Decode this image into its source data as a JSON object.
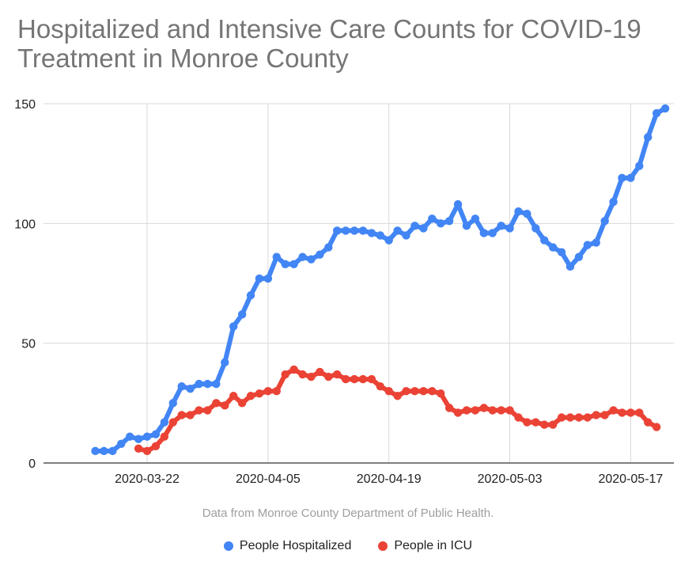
{
  "chart_data": {
    "type": "line",
    "title": "Hospitalized and Intensive Care Counts for COVID-19 Treatment in Monroe County",
    "subtitle": "Data from Monroe County Department of Public Health.",
    "xlabel": "",
    "ylabel": "",
    "x_start": "2020-03-16",
    "x_ticks": [
      "2020-03-22",
      "2020-04-05",
      "2020-04-19",
      "2020-05-03",
      "2020-05-17"
    ],
    "y_ticks": [
      0,
      50,
      100,
      150
    ],
    "ylim": [
      0,
      150
    ],
    "xlim": [
      "2020-03-10",
      "2020-05-22"
    ],
    "grid": true,
    "legend": "bottom",
    "series": [
      {
        "name": "People Hospitalized",
        "color": "#4285f4",
        "values": [
          5,
          5,
          5,
          8,
          11,
          10,
          11,
          12,
          17,
          25,
          32,
          31,
          33,
          33,
          33,
          42,
          57,
          62,
          70,
          77,
          77,
          86,
          83,
          83,
          86,
          85,
          87,
          90,
          97,
          97,
          97,
          97,
          96,
          95,
          93,
          97,
          95,
          99,
          98,
          102,
          100,
          101,
          108,
          99,
          102,
          96,
          96,
          99,
          98,
          105,
          104,
          98,
          93,
          90,
          88,
          82,
          86,
          91,
          92,
          101,
          109,
          119,
          119,
          124,
          136,
          146,
          148
        ]
      },
      {
        "name": "People in ICU",
        "color": "#ea4335",
        "start": "2020-03-21",
        "values": [
          6,
          5,
          7,
          11,
          17,
          20,
          20,
          22,
          22,
          25,
          24,
          28,
          25,
          28,
          29,
          30,
          30,
          37,
          39,
          37,
          36,
          38,
          36,
          37,
          35,
          35,
          35,
          35,
          32,
          30,
          28,
          30,
          30,
          30,
          30,
          29,
          23,
          21,
          22,
          22,
          23,
          22,
          22,
          22,
          19,
          17,
          17,
          16,
          16,
          19,
          19,
          19,
          19,
          20,
          20,
          22,
          21,
          21,
          21,
          17,
          15
        ]
      }
    ]
  }
}
